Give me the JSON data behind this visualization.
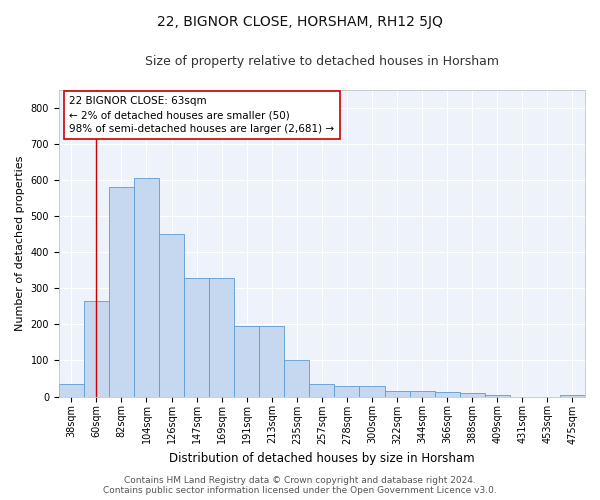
{
  "title": "22, BIGNOR CLOSE, HORSHAM, RH12 5JQ",
  "subtitle": "Size of property relative to detached houses in Horsham",
  "xlabel": "Distribution of detached houses by size in Horsham",
  "ylabel": "Number of detached properties",
  "categories": [
    "38sqm",
    "60sqm",
    "82sqm",
    "104sqm",
    "126sqm",
    "147sqm",
    "169sqm",
    "191sqm",
    "213sqm",
    "235sqm",
    "257sqm",
    "278sqm",
    "300sqm",
    "322sqm",
    "344sqm",
    "366sqm",
    "388sqm",
    "409sqm",
    "431sqm",
    "453sqm",
    "475sqm"
  ],
  "values": [
    35,
    265,
    580,
    605,
    450,
    330,
    330,
    195,
    195,
    100,
    35,
    30,
    30,
    15,
    15,
    12,
    10,
    5,
    0,
    0,
    5
  ],
  "bar_color": "#c5d8f0",
  "bar_edge_color": "#5b9bd5",
  "annotation_line_color": "#cc0000",
  "annotation_box_text": "22 BIGNOR CLOSE: 63sqm\n← 2% of detached houses are smaller (50)\n98% of semi-detached houses are larger (2,681) →",
  "ylim": [
    0,
    850
  ],
  "yticks": [
    0,
    100,
    200,
    300,
    400,
    500,
    600,
    700,
    800
  ],
  "footer_line1": "Contains HM Land Registry data © Crown copyright and database right 2024.",
  "footer_line2": "Contains public sector information licensed under the Open Government Licence v3.0.",
  "plot_bg_color": "#eef2fb",
  "title_fontsize": 10,
  "subtitle_fontsize": 9,
  "annotation_fontsize": 7.5,
  "tick_fontsize": 7,
  "ylabel_fontsize": 8,
  "xlabel_fontsize": 8.5,
  "footer_fontsize": 6.5
}
